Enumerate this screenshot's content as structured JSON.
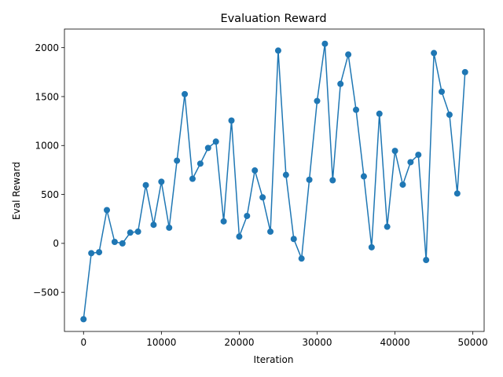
{
  "chart_data": {
    "type": "line",
    "title": "Evaluation Reward",
    "xlabel": "Iteration",
    "ylabel": "Eval Reward",
    "xlim": [
      -2450,
      51450
    ],
    "ylim": [
      -900,
      2190
    ],
    "xticks": [
      0,
      10000,
      20000,
      30000,
      40000,
      50000
    ],
    "xtick_labels": [
      "0",
      "10000",
      "20000",
      "30000",
      "40000",
      "50000"
    ],
    "yticks": [
      -500,
      0,
      500,
      1000,
      1500,
      2000
    ],
    "ytick_labels": [
      "−500",
      "0",
      "500",
      "1000",
      "1500",
      "2000"
    ],
    "grid": false,
    "marker": "circle",
    "series": [
      {
        "color": "#1f77b4",
        "x": [
          0,
          1000,
          2000,
          3000,
          4000,
          5000,
          6000,
          7000,
          8000,
          9000,
          10000,
          11000,
          12000,
          13000,
          14000,
          15000,
          16000,
          17000,
          18000,
          19000,
          20000,
          21000,
          22000,
          23000,
          24000,
          25000,
          26000,
          27000,
          28000,
          29000,
          30000,
          31000,
          32000,
          33000,
          34000,
          35000,
          36000,
          37000,
          38000,
          39000,
          40000,
          41000,
          42000,
          43000,
          44000,
          45000,
          46000,
          47000,
          48000,
          49000
        ],
        "y": [
          -775,
          -100,
          -90,
          340,
          15,
          0,
          110,
          120,
          595,
          190,
          630,
          160,
          845,
          1525,
          660,
          815,
          975,
          1040,
          225,
          1255,
          70,
          280,
          745,
          470,
          120,
          1970,
          700,
          45,
          -155,
          650,
          1455,
          2040,
          645,
          1630,
          1930,
          1365,
          685,
          -40,
          1325,
          170,
          945,
          600,
          830,
          905,
          -170,
          1945,
          1550,
          1315,
          510,
          1750
        ]
      }
    ]
  }
}
